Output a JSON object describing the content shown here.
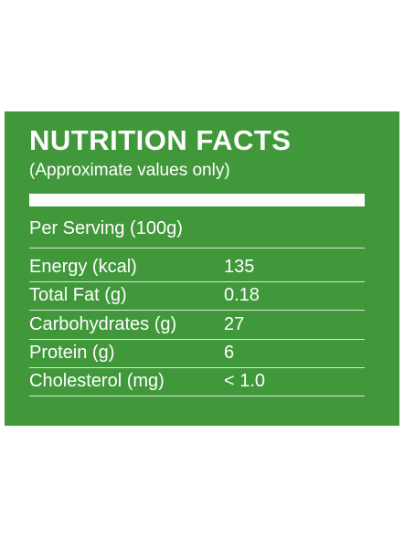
{
  "header": {
    "title": "NUTRITION FACTS",
    "subtitle": "(Approximate values only)"
  },
  "serving": "Per Serving (100g)",
  "table": {
    "rows": [
      [
        "Energy (kcal)",
        135
      ],
      [
        "Total Fat (g)",
        0.18
      ],
      [
        "Carbohydrates (g)",
        27
      ],
      [
        "Protein (g)",
        6
      ],
      [
        "Cholesterol (mg)",
        "< 1.0"
      ]
    ]
  }
}
